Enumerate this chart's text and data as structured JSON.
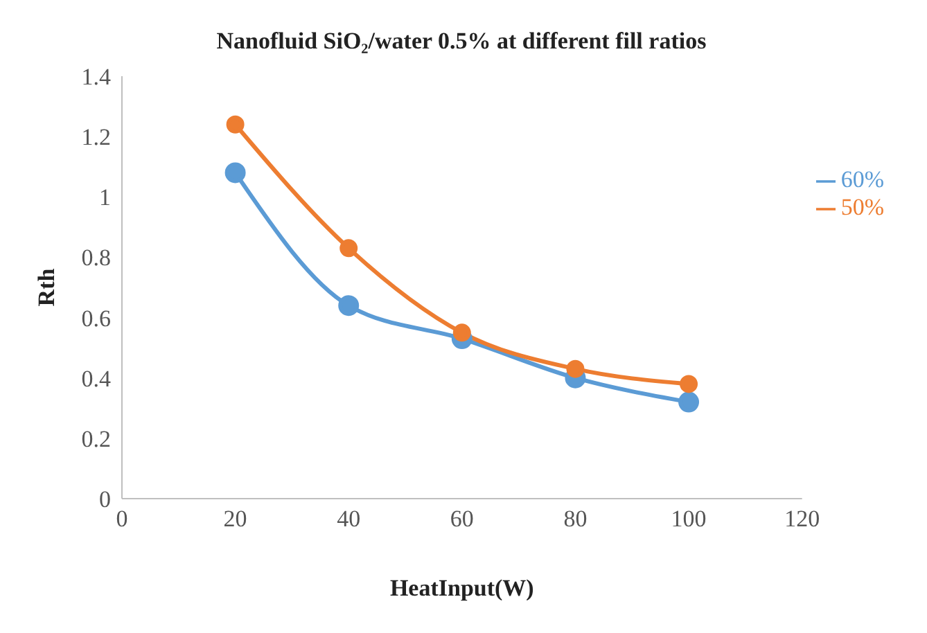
{
  "chart_data": {
    "type": "line",
    "title": "Nanofluid SiO₂/water 0.5% at different fill ratios",
    "xlabel": "HeatInput(W)",
    "ylabel": "Rth",
    "x": [
      20,
      40,
      60,
      80,
      100
    ],
    "series": [
      {
        "name": "60%",
        "color": "#5b9bd5",
        "values": [
          1.08,
          0.64,
          0.53,
          0.4,
          0.32
        ]
      },
      {
        "name": "50%",
        "color": "#ed7d31",
        "values": [
          1.24,
          0.83,
          0.55,
          0.43,
          0.38
        ]
      }
    ],
    "xlim": [
      0,
      120
    ],
    "xticks": [
      0,
      20,
      40,
      60,
      80,
      100,
      120
    ],
    "ylim": [
      0,
      1.4
    ],
    "yticks": [
      0,
      0.2,
      0.4,
      0.6,
      0.8,
      1,
      1.2,
      1.4
    ],
    "grid": false,
    "legend": "right",
    "marker": "circle",
    "line_style": "solid"
  }
}
